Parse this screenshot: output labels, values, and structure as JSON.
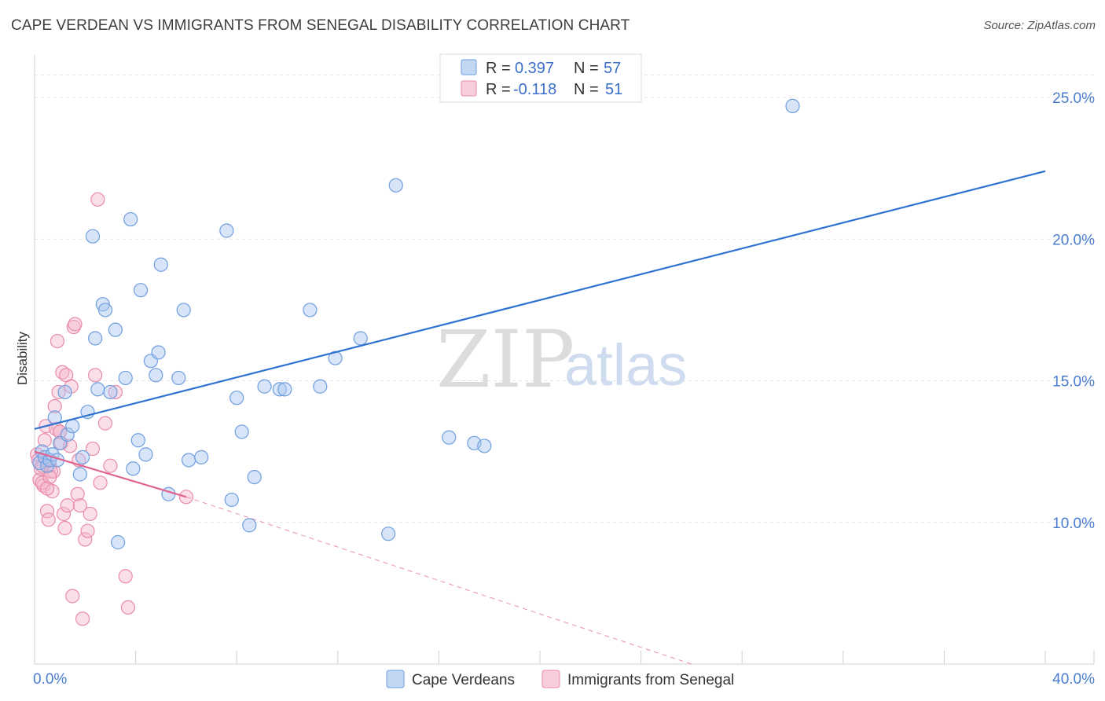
{
  "title": "CAPE VERDEAN VS IMMIGRANTS FROM SENEGAL DISABILITY CORRELATION CHART",
  "source": "Source: ZipAtlas.com",
  "watermark": {
    "zip": "ZIP",
    "atlas": "atlas"
  },
  "colors": {
    "blue_fill": "#a8c6f0",
    "blue_stroke": "#6f9ee0",
    "blue_line": "#2f73d1",
    "pink_fill": "#f5b8cb",
    "pink_stroke": "#e98aaa",
    "pink_line": "#e0628f",
    "grid": "#e3e3e3",
    "axis_text": "#4a7cd0"
  },
  "legend": {
    "rows": [
      {
        "r_label": "R =",
        "r_value": "0.397",
        "n_label": "N =",
        "n_value": "57"
      },
      {
        "r_label": "R =",
        "r_value": "-0.118",
        "n_label": "N =",
        "n_value": "51"
      }
    ]
  },
  "chart_data": {
    "type": "scatter",
    "title": "CAPE VERDEAN VS IMMIGRANTS FROM SENEGAL DISABILITY CORRELATION CHART",
    "xlabel": "",
    "ylabel": "Disability",
    "xlim": [
      0,
      40
    ],
    "ylim": [
      5,
      26.5
    ],
    "x_tick_labels": [
      "0.0%",
      "40.0%"
    ],
    "y_ticks": [
      10,
      15,
      20,
      25
    ],
    "y_tick_labels": [
      "10.0%",
      "15.0%",
      "20.0%",
      "25.0%"
    ],
    "grid": true,
    "series": [
      {
        "name": "Cape Verdeans",
        "color": "blue",
        "trend": {
          "x": [
            0,
            40
          ],
          "y": [
            13.3,
            22.4
          ],
          "dashed_extension": false
        },
        "points": [
          [
            0.2,
            12.1
          ],
          [
            0.3,
            12.5
          ],
          [
            0.4,
            12.3
          ],
          [
            0.5,
            12.0
          ],
          [
            0.6,
            12.2
          ],
          [
            0.7,
            12.4
          ],
          [
            0.8,
            13.7
          ],
          [
            0.9,
            12.2
          ],
          [
            1.0,
            12.8
          ],
          [
            1.2,
            14.6
          ],
          [
            1.3,
            13.1
          ],
          [
            1.5,
            13.4
          ],
          [
            1.8,
            11.7
          ],
          [
            1.9,
            12.3
          ],
          [
            2.1,
            13.9
          ],
          [
            2.3,
            20.1
          ],
          [
            2.4,
            16.5
          ],
          [
            2.5,
            14.7
          ],
          [
            2.7,
            17.7
          ],
          [
            2.8,
            17.5
          ],
          [
            3.0,
            14.6
          ],
          [
            3.2,
            16.8
          ],
          [
            3.3,
            9.3
          ],
          [
            3.6,
            15.1
          ],
          [
            3.8,
            20.7
          ],
          [
            3.9,
            11.9
          ],
          [
            4.1,
            12.9
          ],
          [
            4.2,
            18.2
          ],
          [
            4.4,
            12.4
          ],
          [
            4.6,
            15.7
          ],
          [
            4.8,
            15.2
          ],
          [
            4.9,
            16.0
          ],
          [
            5.0,
            19.1
          ],
          [
            5.3,
            11.0
          ],
          [
            5.7,
            15.1
          ],
          [
            5.9,
            17.5
          ],
          [
            6.1,
            12.2
          ],
          [
            6.6,
            12.3
          ],
          [
            7.6,
            20.3
          ],
          [
            7.8,
            10.8
          ],
          [
            8.0,
            14.4
          ],
          [
            8.2,
            13.2
          ],
          [
            8.5,
            9.9
          ],
          [
            8.7,
            11.6
          ],
          [
            9.1,
            14.8
          ],
          [
            9.7,
            14.7
          ],
          [
            9.9,
            14.7
          ],
          [
            10.9,
            17.5
          ],
          [
            11.3,
            14.8
          ],
          [
            11.9,
            15.8
          ],
          [
            12.9,
            16.5
          ],
          [
            14.0,
            9.6
          ],
          [
            14.3,
            21.9
          ],
          [
            16.4,
            13.0
          ],
          [
            17.4,
            12.8
          ],
          [
            17.8,
            12.7
          ],
          [
            30.0,
            24.7
          ]
        ]
      },
      {
        "name": "Immigrants from Senegal",
        "color": "pink",
        "trend": {
          "x": [
            0,
            6.0
          ],
          "y": [
            12.5,
            10.9
          ],
          "dashed_extension": {
            "x": [
              6.0,
              26.0
            ],
            "y": [
              10.9,
              5.0
            ]
          }
        },
        "points": [
          [
            0.1,
            12.4
          ],
          [
            0.15,
            12.2
          ],
          [
            0.2,
            11.5
          ],
          [
            0.25,
            11.9
          ],
          [
            0.3,
            12.0
          ],
          [
            0.35,
            11.3
          ],
          [
            0.4,
            12.9
          ],
          [
            0.45,
            13.4
          ],
          [
            0.5,
            10.4
          ],
          [
            0.55,
            10.1
          ],
          [
            0.6,
            12.0
          ],
          [
            0.65,
            11.8
          ],
          [
            0.7,
            11.1
          ],
          [
            0.75,
            11.8
          ],
          [
            0.8,
            14.1
          ],
          [
            0.85,
            13.3
          ],
          [
            0.9,
            16.4
          ],
          [
            0.95,
            14.6
          ],
          [
            1.0,
            13.2
          ],
          [
            1.05,
            12.8
          ],
          [
            1.1,
            15.3
          ],
          [
            1.15,
            10.3
          ],
          [
            1.2,
            9.8
          ],
          [
            1.25,
            15.2
          ],
          [
            1.3,
            10.6
          ],
          [
            1.4,
            12.7
          ],
          [
            1.45,
            14.8
          ],
          [
            1.5,
            7.4
          ],
          [
            1.55,
            16.9
          ],
          [
            1.6,
            17.0
          ],
          [
            1.7,
            11.0
          ],
          [
            1.75,
            12.2
          ],
          [
            1.8,
            10.6
          ],
          [
            1.9,
            6.6
          ],
          [
            2.0,
            9.4
          ],
          [
            2.1,
            9.7
          ],
          [
            2.2,
            10.3
          ],
          [
            2.3,
            12.6
          ],
          [
            2.4,
            15.2
          ],
          [
            2.5,
            21.4
          ],
          [
            2.6,
            11.4
          ],
          [
            2.8,
            13.5
          ],
          [
            3.0,
            12.0
          ],
          [
            3.2,
            14.6
          ],
          [
            3.6,
            8.1
          ],
          [
            3.7,
            7.0
          ],
          [
            0.3,
            11.4
          ],
          [
            0.6,
            11.6
          ],
          [
            1.0,
            13.2
          ],
          [
            6.0,
            10.9
          ],
          [
            0.5,
            11.2
          ]
        ]
      }
    ]
  },
  "bottom_legend": [
    {
      "label": "Cape Verdeans"
    },
    {
      "label": "Immigrants from Senegal"
    }
  ]
}
